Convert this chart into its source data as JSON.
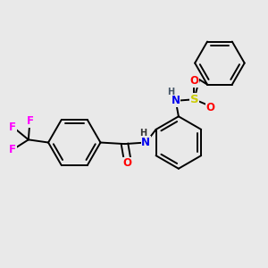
{
  "background_color": "#e9e9e9",
  "atom_colors": {
    "F": "#ff00ff",
    "O": "#ff0000",
    "N": "#0000ee",
    "S": "#cccc00",
    "C": "#000000",
    "H": "#555555"
  },
  "lw": 1.4,
  "fs": 8.5
}
